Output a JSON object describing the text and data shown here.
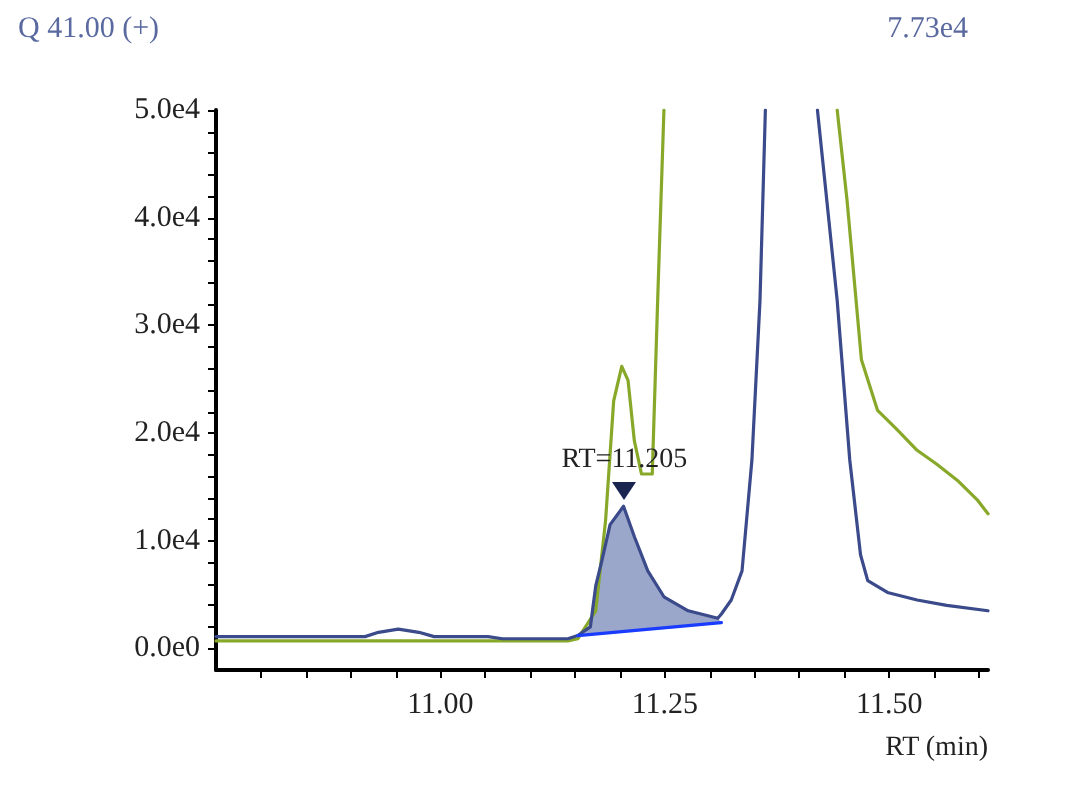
{
  "chart_data": {
    "type": "line",
    "title": "Q 41.00 (+)",
    "subtitle": "7.73e4",
    "xlabel": "RT (min)",
    "xlim": [
      10.75,
      11.61
    ],
    "ylim": [
      -2000,
      50000
    ],
    "xticks": [
      {
        "value": 10.8,
        "label": null
      },
      {
        "value": 10.85,
        "label": null
      },
      {
        "value": 10.9,
        "label": null
      },
      {
        "value": 10.95,
        "label": null
      },
      {
        "value": 11.0,
        "label": "11.00"
      },
      {
        "value": 11.05,
        "label": null
      },
      {
        "value": 11.1,
        "label": null
      },
      {
        "value": 11.15,
        "label": null
      },
      {
        "value": 11.2,
        "label": null
      },
      {
        "value": 11.25,
        "label": "11.25"
      },
      {
        "value": 11.3,
        "label": null
      },
      {
        "value": 11.35,
        "label": null
      },
      {
        "value": 11.4,
        "label": null
      },
      {
        "value": 11.45,
        "label": null
      },
      {
        "value": 11.5,
        "label": "11.50"
      },
      {
        "value": 11.55,
        "label": null
      },
      {
        "value": 11.6,
        "label": null
      }
    ],
    "yticks": [
      {
        "value": 0,
        "label": "0.0e0"
      },
      {
        "value": 2000,
        "label": null
      },
      {
        "value": 4000,
        "label": null
      },
      {
        "value": 6000,
        "label": null
      },
      {
        "value": 8000,
        "label": null
      },
      {
        "value": 10000,
        "label": "1.0e4"
      },
      {
        "value": 12000,
        "label": null
      },
      {
        "value": 14000,
        "label": null
      },
      {
        "value": 16000,
        "label": null
      },
      {
        "value": 18000,
        "label": null
      },
      {
        "value": 20000,
        "label": "2.0e4"
      },
      {
        "value": 22000,
        "label": null
      },
      {
        "value": 24000,
        "label": null
      },
      {
        "value": 26000,
        "label": null
      },
      {
        "value": 28000,
        "label": null
      },
      {
        "value": 30000,
        "label": "3.0e4"
      },
      {
        "value": 32000,
        "label": null
      },
      {
        "value": 34000,
        "label": null
      },
      {
        "value": 36000,
        "label": null
      },
      {
        "value": 38000,
        "label": null
      },
      {
        "value": 40000,
        "label": "4.0e4"
      },
      {
        "value": 42000,
        "label": null
      },
      {
        "value": 44000,
        "label": null
      },
      {
        "value": 46000,
        "label": null
      },
      {
        "value": 48000,
        "label": null
      },
      {
        "value": 50000,
        "label": "5.0e4"
      }
    ],
    "grid": false,
    "marker": "none",
    "line_style": "solid",
    "annotations": [
      {
        "text": "RT=11.205",
        "x": 11.205,
        "y": 13200
      }
    ],
    "series": [
      {
        "color": "#88a82a",
        "x": [
          10.75,
          11.069,
          11.142,
          11.153,
          11.173,
          11.184,
          11.193,
          11.202,
          11.209,
          11.216,
          11.224,
          11.236,
          11.242,
          11.249
        ],
        "values": [
          700,
          700,
          700,
          900,
          3500,
          11900,
          23000,
          26200,
          24900,
          19300,
          16200,
          16200,
          32300,
          50000
        ]
      },
      {
        "color": "#88a82a",
        "x": [
          11.442,
          11.453,
          11.469,
          11.487,
          11.509,
          11.531,
          11.553,
          11.576,
          11.598,
          11.61
        ],
        "values": [
          50000,
          41600,
          26800,
          22100,
          20300,
          18400,
          17100,
          15600,
          13800,
          12500
        ]
      },
      {
        "color": "#3a4a8a",
        "x": [
          10.75,
          10.916,
          10.931,
          10.953,
          10.976,
          10.993,
          11.053,
          11.069,
          11.142,
          11.153,
          11.167,
          11.173,
          11.18,
          11.189,
          11.204,
          11.216,
          11.231,
          11.249,
          11.276,
          11.309,
          11.313,
          11.324,
          11.336,
          11.347,
          11.356,
          11.362
        ],
        "values": [
          1100,
          1100,
          1500,
          1800,
          1500,
          1100,
          1100,
          900,
          900,
          1200,
          2000,
          5800,
          8200,
          11500,
          13200,
          10400,
          7200,
          4800,
          3500,
          2800,
          3200,
          4500,
          7200,
          17500,
          32300,
          50000
        ]
      },
      {
        "color": "#3a4a8a",
        "x": [
          11.42,
          11.442,
          11.456,
          11.468,
          11.476,
          11.498,
          11.531,
          11.564,
          11.61
        ],
        "values": [
          50000,
          32300,
          17500,
          8700,
          6300,
          5200,
          4500,
          4000,
          3500
        ]
      },
      {
        "type": "area",
        "color": "#8f9cc4",
        "x": [
          11.153,
          11.167,
          11.173,
          11.18,
          11.189,
          11.204,
          11.216,
          11.231,
          11.249,
          11.276,
          11.309,
          11.313
        ],
        "values": [
          1200,
          2000,
          5800,
          8200,
          11500,
          13200,
          10400,
          7200,
          4800,
          3500,
          2800,
          2400
        ]
      },
      {
        "color": "#1a3cff",
        "x": [
          11.153,
          11.233,
          11.313
        ],
        "values": [
          1200,
          1800,
          2400
        ]
      }
    ]
  }
}
